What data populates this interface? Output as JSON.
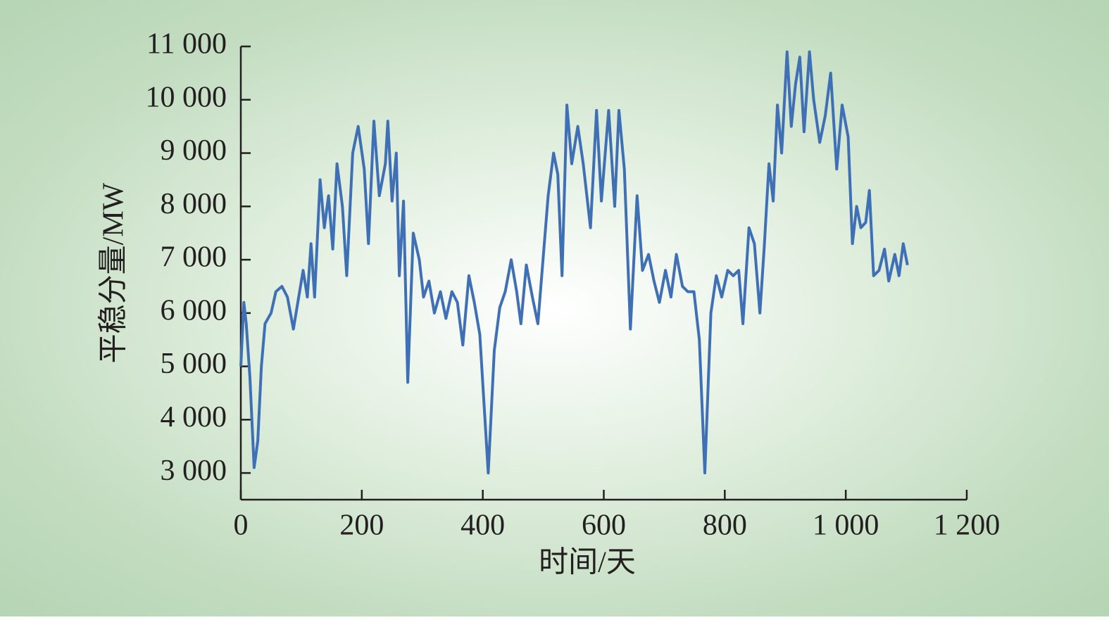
{
  "chart_data": {
    "type": "line",
    "x_label": "时间/天",
    "y_label": "平稳分量/MW",
    "xlim": [
      0,
      1200
    ],
    "ylim": [
      2500,
      11000
    ],
    "xticks": [
      0,
      200,
      400,
      600,
      800,
      {
        "value": 1000,
        "label": "1 000"
      },
      {
        "value": 1200,
        "label": "1 200"
      }
    ],
    "yticks": [
      {
        "value": 3000,
        "label": "3 000"
      },
      {
        "value": 4000,
        "label": "4 000"
      },
      {
        "value": 5000,
        "label": "5 000"
      },
      {
        "value": 6000,
        "label": "6 000"
      },
      {
        "value": 7000,
        "label": "7 000"
      },
      {
        "value": 8000,
        "label": "8 000"
      },
      {
        "value": 9000,
        "label": "9 000"
      },
      {
        "value": 10000,
        "label": "10 000"
      },
      {
        "value": 11000,
        "label": "11 000"
      }
    ],
    "x": [
      0,
      5,
      9,
      15,
      22,
      28,
      34,
      40,
      50,
      58,
      68,
      77,
      87,
      103,
      110,
      116,
      122,
      131,
      138,
      145,
      152,
      159,
      168,
      175,
      185,
      194,
      204,
      211,
      220,
      229,
      239,
      243,
      250,
      257,
      262,
      269,
      276,
      285,
      295,
      302,
      311,
      320,
      330,
      339,
      349,
      358,
      367,
      377,
      386,
      395,
      402,
      409,
      419,
      428,
      437,
      447,
      456,
      463,
      472,
      482,
      491,
      501,
      508,
      517,
      524,
      531,
      539,
      547,
      557,
      566,
      578,
      588,
      596,
      608,
      618,
      625,
      634,
      644,
      655,
      664,
      674,
      683,
      692,
      702,
      711,
      720,
      730,
      739,
      749,
      758,
      767,
      777,
      786,
      795,
      805,
      814,
      823,
      830,
      840,
      849,
      858,
      865,
      873,
      880,
      887,
      894,
      903,
      910,
      917,
      924,
      931,
      940,
      947,
      957,
      966,
      975,
      985,
      994,
      1004,
      1011,
      1018,
      1025,
      1033,
      1039,
      1046,
      1055,
      1064,
      1071,
      1081,
      1088,
      1095,
      1102
    ],
    "series": [
      {
        "color": "#3f6fb5",
        "values": [
          5000,
          6200,
          5800,
          4800,
          3100,
          3600,
          5000,
          5800,
          6000,
          6400,
          6500,
          6300,
          5700,
          6800,
          6300,
          7300,
          6300,
          8500,
          7600,
          8200,
          7200,
          8800,
          8000,
          6700,
          9000,
          9500,
          8700,
          7300,
          9600,
          8200,
          8800,
          9600,
          8100,
          9000,
          6700,
          8100,
          4700,
          7500,
          7000,
          6300,
          6600,
          6000,
          6400,
          5900,
          6400,
          6200,
          5400,
          6700,
          6200,
          5600,
          4300,
          3000,
          5300,
          6100,
          6400,
          7000,
          6400,
          5800,
          6900,
          6300,
          5800,
          7200,
          8200,
          9000,
          8600,
          6700,
          9900,
          8800,
          9500,
          8800,
          7600,
          9800,
          8100,
          9800,
          8000,
          9800,
          8700,
          5700,
          8200,
          6800,
          7100,
          6600,
          6200,
          6800,
          6300,
          7100,
          6500,
          6400,
          6400,
          5500,
          3000,
          6000,
          6700,
          6300,
          6800,
          6700,
          6800,
          5800,
          7600,
          7300,
          6000,
          7200,
          8800,
          8100,
          9900,
          9000,
          10900,
          9500,
          10300,
          10800,
          9400,
          10900,
          10000,
          9200,
          9700,
          10500,
          8700,
          9900,
          9300,
          7300,
          8000,
          7600,
          7700,
          8300,
          6700,
          6800,
          7200,
          6600,
          7100,
          6700,
          7300,
          6900
        ]
      }
    ]
  }
}
